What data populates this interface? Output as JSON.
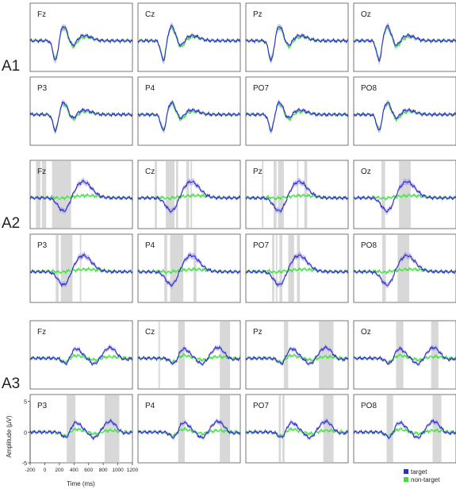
{
  "chart_data": {
    "type": "line",
    "groups": [
      {
        "label": "A1",
        "channels": [
          [
            "Fz",
            "Cz",
            "Pz",
            "Oz"
          ],
          [
            "P3",
            "P4",
            "PO7",
            "PO8"
          ]
        ]
      },
      {
        "label": "A2",
        "channels": [
          [
            "Fz",
            "Cz",
            "Pz",
            "Oz"
          ],
          [
            "P3",
            "P4",
            "PO7",
            "PO8"
          ]
        ]
      },
      {
        "label": "A3",
        "channels": [
          [
            "Fz",
            "Cz",
            "Pz",
            "Oz"
          ],
          [
            "P3",
            "P4",
            "PO7",
            "PO8"
          ]
        ]
      }
    ],
    "series": [
      {
        "name": "target",
        "color": "#3030c8",
        "band_color": "#9a9ae6"
      },
      {
        "name": "non-target",
        "color": "#3ee03e",
        "band_color": "#9af09a"
      }
    ],
    "x_ticks": [
      -200,
      0,
      200,
      400,
      600,
      800,
      1000,
      1200
    ],
    "xlim": [
      -200,
      1200
    ],
    "ylim": [
      -5,
      5
    ],
    "y_ticks": [
      -5,
      0,
      5
    ],
    "xlabel": "Time (ms)",
    "ylabel": "Amplitude (µV)",
    "legend_position": "bottom-right",
    "significance_color": "#d8d8d8",
    "significant_intervals": {
      "A2-0": [
        [
          -120,
          -60
        ],
        [
          -40,
          20
        ],
        [
          100,
          360
        ]
      ],
      "A2-1": [
        [
          30,
          60
        ],
        [
          180,
          300
        ],
        [
          320,
          350
        ],
        [
          460,
          500
        ],
        [
          520,
          540
        ]
      ],
      "A2-2": [
        [
          20,
          40
        ],
        [
          180,
          220
        ],
        [
          240,
          320
        ],
        [
          500,
          520
        ],
        [
          600,
          640
        ]
      ],
      "A2-3": [
        [
          180,
          230
        ],
        [
          420,
          580
        ]
      ],
      "A2-4": [
        [
          150,
          190
        ],
        [
          220,
          380
        ],
        [
          480,
          500
        ]
      ],
      "A2-5": [
        [
          160,
          200
        ],
        [
          240,
          420
        ],
        [
          560,
          600
        ]
      ],
      "A2-6": [
        [
          160,
          190
        ],
        [
          210,
          230
        ],
        [
          260,
          300
        ],
        [
          380,
          460
        ],
        [
          500,
          540
        ]
      ],
      "A2-7": [
        [
          190,
          240
        ],
        [
          400,
          560
        ]
      ],
      "A3-1": [
        [
          80,
          100
        ],
        [
          350,
          440
        ],
        [
          920,
          1060
        ]
      ],
      "A3-2": [
        [
          320,
          380
        ],
        [
          800,
          1000
        ]
      ],
      "A3-3": [
        [
          380,
          480
        ],
        [
          860,
          960
        ]
      ],
      "A3-4": [
        [
          300,
          420
        ],
        [
          820,
          1020
        ]
      ],
      "A3-5": [
        [
          350,
          440
        ],
        [
          920,
          1060
        ]
      ],
      "A3-6": [
        [
          250,
          280
        ],
        [
          300,
          330
        ],
        [
          860,
          1000
        ]
      ],
      "A3-7": [
        [
          250,
          340
        ],
        [
          880,
          1000
        ]
      ]
    }
  }
}
